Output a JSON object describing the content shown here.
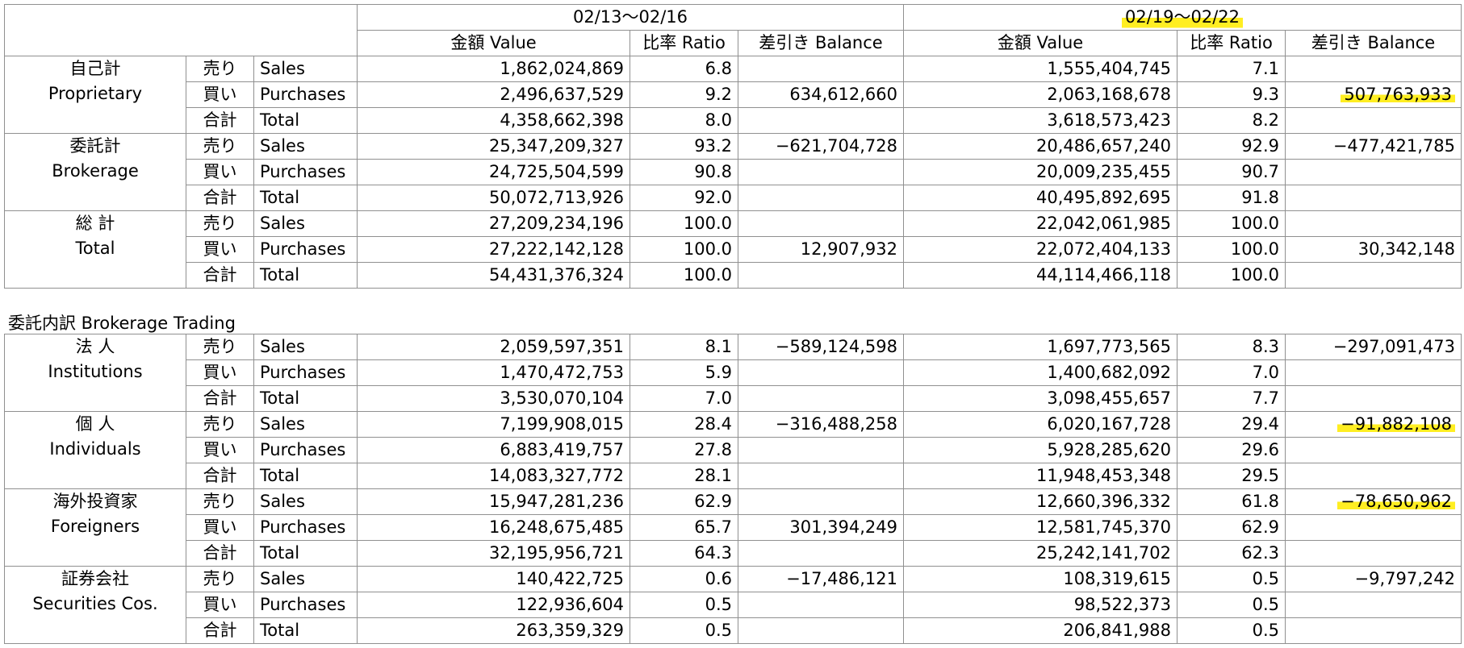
{
  "header": {
    "period1": "02/13〜02/16",
    "period2": "02/19〜02/22",
    "value_label": "金額 Value",
    "ratio_label": "比率 Ratio",
    "balance_label": "差引き Balance"
  },
  "summary": [
    {
      "category_jp": "自己計",
      "category_en": "Proprietary",
      "rows": [
        {
          "type_jp": "売り",
          "type_en": "Sales",
          "v1": "1,862,024,869",
          "r1": "6.8",
          "b1": "",
          "v2": "1,555,404,745",
          "r2": "7.1",
          "b2": ""
        },
        {
          "type_jp": "買い",
          "type_en": "Purchases",
          "v1": "2,496,637,529",
          "r1": "9.2",
          "b1": "634,612,660",
          "v2": "2,063,168,678",
          "r2": "9.3",
          "b2": "507,763,933"
        },
        {
          "type_jp": "合計",
          "type_en": "Total",
          "v1": "4,358,662,398",
          "r1": "8.0",
          "b1": "",
          "v2": "3,618,573,423",
          "r2": "8.2",
          "b2": ""
        }
      ]
    },
    {
      "category_jp": "委託計",
      "category_en": "Brokerage",
      "rows": [
        {
          "type_jp": "売り",
          "type_en": "Sales",
          "v1": "25,347,209,327",
          "r1": "93.2",
          "b1": "−621,704,728",
          "v2": "20,486,657,240",
          "r2": "92.9",
          "b2": "−477,421,785"
        },
        {
          "type_jp": "買い",
          "type_en": "Purchases",
          "v1": "24,725,504,599",
          "r1": "90.8",
          "b1": "",
          "v2": "20,009,235,455",
          "r2": "90.7",
          "b2": ""
        },
        {
          "type_jp": "合計",
          "type_en": "Total",
          "v1": "50,072,713,926",
          "r1": "92.0",
          "b1": "",
          "v2": "40,495,892,695",
          "r2": "91.8",
          "b2": ""
        }
      ]
    },
    {
      "category_jp": "総 計",
      "category_en": "Total",
      "rows": [
        {
          "type_jp": "売り",
          "type_en": "Sales",
          "v1": "27,209,234,196",
          "r1": "100.0",
          "b1": "",
          "v2": "22,042,061,985",
          "r2": "100.0",
          "b2": ""
        },
        {
          "type_jp": "買い",
          "type_en": "Purchases",
          "v1": "27,222,142,128",
          "r1": "100.0",
          "b1": "12,907,932",
          "v2": "22,072,404,133",
          "r2": "100.0",
          "b2": "30,342,148"
        },
        {
          "type_jp": "合計",
          "type_en": "Total",
          "v1": "54,431,376,324",
          "r1": "100.0",
          "b1": "",
          "v2": "44,114,466,118",
          "r2": "100.0",
          "b2": ""
        }
      ]
    }
  ],
  "breakdown_title": "委託内訳  Brokerage Trading",
  "breakdown": [
    {
      "category_jp": "法 人",
      "category_en": "Institutions",
      "rows": [
        {
          "type_jp": "売り",
          "type_en": "Sales",
          "v1": "2,059,597,351",
          "r1": "8.1",
          "b1": "−589,124,598",
          "v2": "1,697,773,565",
          "r2": "8.3",
          "b2": "−297,091,473"
        },
        {
          "type_jp": "買い",
          "type_en": "Purchases",
          "v1": "1,470,472,753",
          "r1": "5.9",
          "b1": "",
          "v2": "1,400,682,092",
          "r2": "7.0",
          "b2": ""
        },
        {
          "type_jp": "合計",
          "type_en": "Total",
          "v1": "3,530,070,104",
          "r1": "7.0",
          "b1": "",
          "v2": "3,098,455,657",
          "r2": "7.7",
          "b2": ""
        }
      ]
    },
    {
      "category_jp": "個 人",
      "category_en": "Individuals",
      "rows": [
        {
          "type_jp": "売り",
          "type_en": "Sales",
          "v1": "7,199,908,015",
          "r1": "28.4",
          "b1": "−316,488,258",
          "v2": "6,020,167,728",
          "r2": "29.4",
          "b2": "−91,882,108"
        },
        {
          "type_jp": "買い",
          "type_en": "Purchases",
          "v1": "6,883,419,757",
          "r1": "27.8",
          "b1": "",
          "v2": "5,928,285,620",
          "r2": "29.6",
          "b2": ""
        },
        {
          "type_jp": "合計",
          "type_en": "Total",
          "v1": "14,083,327,772",
          "r1": "28.1",
          "b1": "",
          "v2": "11,948,453,348",
          "r2": "29.5",
          "b2": ""
        }
      ]
    },
    {
      "category_jp": "海外投資家",
      "category_en": "Foreigners",
      "rows": [
        {
          "type_jp": "売り",
          "type_en": "Sales",
          "v1": "15,947,281,236",
          "r1": "62.9",
          "b1": "",
          "v2": "12,660,396,332",
          "r2": "61.8",
          "b2": "−78,650,962"
        },
        {
          "type_jp": "買い",
          "type_en": "Purchases",
          "v1": "16,248,675,485",
          "r1": "65.7",
          "b1": "301,394,249",
          "v2": "12,581,745,370",
          "r2": "62.9",
          "b2": ""
        },
        {
          "type_jp": "合計",
          "type_en": "Total",
          "v1": "32,195,956,721",
          "r1": "64.3",
          "b1": "",
          "v2": "25,242,141,702",
          "r2": "62.3",
          "b2": ""
        }
      ]
    },
    {
      "category_jp": "証券会社",
      "category_en": "Securities Cos.",
      "rows": [
        {
          "type_jp": "売り",
          "type_en": "Sales",
          "v1": "140,422,725",
          "r1": "0.6",
          "b1": "−17,486,121",
          "v2": "108,319,615",
          "r2": "0.5",
          "b2": "−9,797,242"
        },
        {
          "type_jp": "買い",
          "type_en": "Purchases",
          "v1": "122,936,604",
          "r1": "0.5",
          "b1": "",
          "v2": "98,522,373",
          "r2": "0.5",
          "b2": ""
        },
        {
          "type_jp": "合計",
          "type_en": "Total",
          "v1": "263,359,329",
          "r1": "0.5",
          "b1": "",
          "v2": "206,841,988",
          "r2": "0.5",
          "b2": ""
        }
      ]
    }
  ],
  "highlights": {
    "color": "#ffee22",
    "cells": [
      "header.period2",
      "summary.0.rows.1.b2",
      "breakdown.1.rows.0.b2",
      "breakdown.2.rows.0.b2"
    ]
  }
}
